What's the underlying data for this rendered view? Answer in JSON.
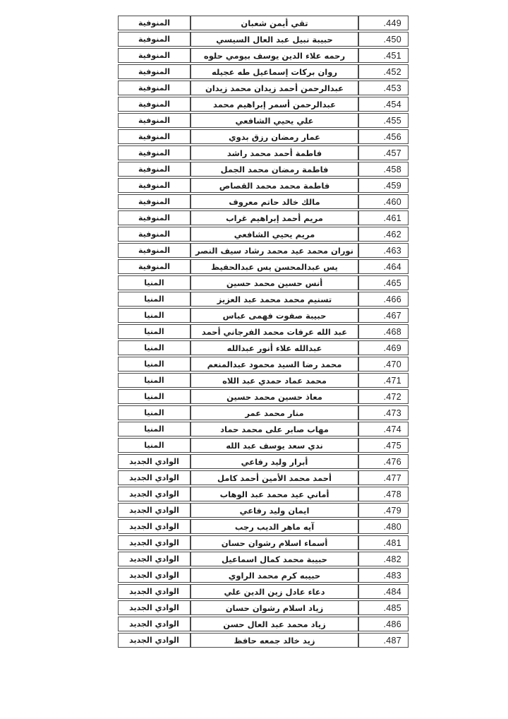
{
  "document": {
    "kind": "students-list-page",
    "direction": "rtl",
    "colors": {
      "background": "#ffffff",
      "border": "#4a4a4a",
      "text": "#1f1f1f"
    },
    "table": {
      "columns": [
        {
          "id": "number",
          "align": "right"
        },
        {
          "id": "name",
          "align": "center"
        },
        {
          "id": "governorate",
          "align": "center"
        }
      ],
      "rows": [
        {
          "number": ".449",
          "name": "تقي أيمن شعبان",
          "governorate": "المنوفية"
        },
        {
          "number": ".450",
          "name": "حبيبة نبيل عبد العال السيسي",
          "governorate": "المنوفية"
        },
        {
          "number": ".451",
          "name": "رحمه علاء الدين يوسف بيومي حلوه",
          "governorate": "المنوفية"
        },
        {
          "number": ".452",
          "name": "روان بركات إسماعيل طه عجيله",
          "governorate": "المنوفية"
        },
        {
          "number": ".453",
          "name": "عبدالرحمن أحمد زيدان محمد زيدان",
          "governorate": "المنوفية"
        },
        {
          "number": ".454",
          "name": "عبدالرحمن أسمر إبراهيم محمد",
          "governorate": "المنوفية"
        },
        {
          "number": ".455",
          "name": "علي يحيي الشافعي",
          "governorate": "المنوفية"
        },
        {
          "number": ".456",
          "name": "عمار رمضان رزق بدوي",
          "governorate": "المنوفية"
        },
        {
          "number": ".457",
          "name": "فاطمة أحمد محمد راشد",
          "governorate": "المنوفية"
        },
        {
          "number": ".458",
          "name": "فاطمة رمضان محمد الجمل",
          "governorate": "المنوفية"
        },
        {
          "number": ".459",
          "name": "فاطمة محمد محمد القصاص",
          "governorate": "المنوفية"
        },
        {
          "number": ".460",
          "name": "مالك خالد حاتم معروف",
          "governorate": "المنوفية"
        },
        {
          "number": ".461",
          "name": "مريم أحمد إبراهيم غراب",
          "governorate": "المنوفية"
        },
        {
          "number": ".462",
          "name": "مريم يحيي الشافعي",
          "governorate": "المنوفية"
        },
        {
          "number": ".463",
          "name": "نوران محمد عيد محمد رشاد سيف النصر",
          "governorate": "المنوفية"
        },
        {
          "number": ".464",
          "name": "يس عبدالمحسن يس عبدالحفيظ",
          "governorate": "المنوفية"
        },
        {
          "number": ".465",
          "name": "أنس حسين محمد حسين",
          "governorate": "المنيا"
        },
        {
          "number": ".466",
          "name": "تسنيم محمد محمد عبد العزيز",
          "governorate": "المنيا"
        },
        {
          "number": ".467",
          "name": "حبيبة صفوت فهمى عباس",
          "governorate": "المنيا"
        },
        {
          "number": ".468",
          "name": "عبد الله عرفات محمد الفرجاني أحمد",
          "governorate": "المنيا"
        },
        {
          "number": ".469",
          "name": "عبدالله علاء أنور عبدالله",
          "governorate": "المنيا"
        },
        {
          "number": ".470",
          "name": "محمد رضا السيد محمود عبدالمنعم",
          "governorate": "المنيا"
        },
        {
          "number": ".471",
          "name": "محمد عماد حمدي عبد اللاه",
          "governorate": "المنيا"
        },
        {
          "number": ".472",
          "name": "معاذ حسين محمد حسين",
          "governorate": "المنيا"
        },
        {
          "number": ".473",
          "name": "منار محمد عمر",
          "governorate": "المنيا"
        },
        {
          "number": ".474",
          "name": "مهاب صابر على محمد حماد",
          "governorate": "المنيا"
        },
        {
          "number": ".475",
          "name": "ندي سعد يوسف عبد الله",
          "governorate": "المنيا"
        },
        {
          "number": ".476",
          "name": "أبرار وليد رفاعي",
          "governorate": "الوادي الجديد"
        },
        {
          "number": ".477",
          "name": "أحمد محمد الأمين أحمد كامل",
          "governorate": "الوادي الجديد"
        },
        {
          "number": ".478",
          "name": "أماني عيد محمد عبد الوهاب",
          "governorate": "الوادي الجديد"
        },
        {
          "number": ".479",
          "name": "ايمان وليد رفاعي",
          "governorate": "الوادي الجديد"
        },
        {
          "number": ".480",
          "name": "آيه ماهر الديب رجب",
          "governorate": "الوادي الجديد"
        },
        {
          "number": ".481",
          "name": "أسماء اسلام رشوان حسان",
          "governorate": "الوادي الجديد"
        },
        {
          "number": ".482",
          "name": "حبيبة محمد كمال اسماعيل",
          "governorate": "الوادي الجديد"
        },
        {
          "number": ".483",
          "name": "حبيبه كرم محمد الراوي",
          "governorate": "الوادي الجديد"
        },
        {
          "number": ".484",
          "name": "دعاء عادل زين الدين علي",
          "governorate": "الوادي الجديد"
        },
        {
          "number": ".485",
          "name": "زياد اسلام رشوان حسان",
          "governorate": "الوادي الجديد"
        },
        {
          "number": ".486",
          "name": "زياد محمد عبد العال حسن",
          "governorate": "الوادي الجديد"
        },
        {
          "number": ".487",
          "name": "زيد خالد جمعه حافظ",
          "governorate": "الوادي الجديد"
        }
      ]
    }
  }
}
